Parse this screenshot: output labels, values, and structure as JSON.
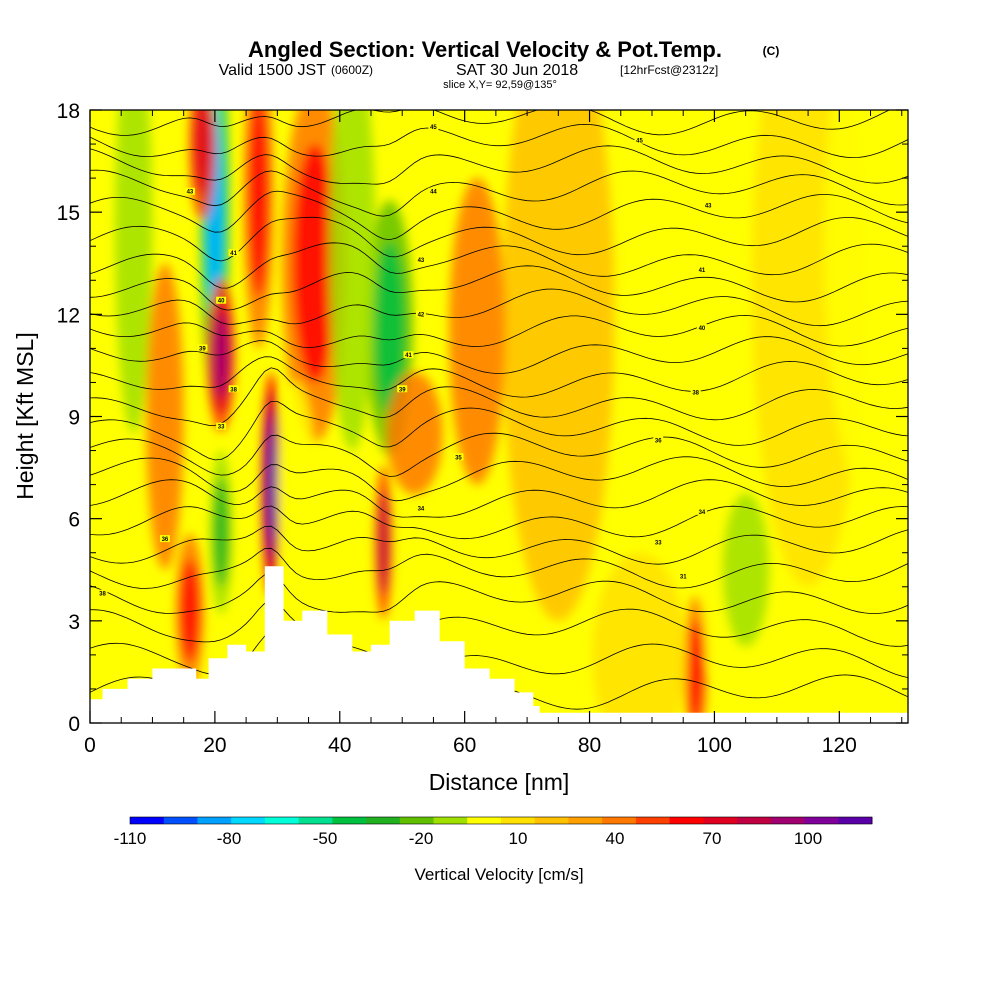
{
  "header": {
    "title": "Angled Section: Vertical Velocity & Pot.Temp.",
    "title_suffix": "(C)",
    "valid_prefix": "Valid 1500 JST",
    "valid_zulu": "(0600Z)",
    "valid_date": "SAT 30 Jun 2018",
    "forecast": "[12hrFcst@2312z]",
    "slice": "slice X,Y= 92,59@135°"
  },
  "chart_data": {
    "type": "heatmap",
    "xlabel": "Distance [nm]",
    "ylabel": "Height [Kft MSL]",
    "xlim": [
      0,
      131
    ],
    "ylim": [
      0,
      18
    ],
    "xticks": [
      0,
      20,
      40,
      60,
      80,
      100,
      120
    ],
    "yticks": [
      0,
      3,
      6,
      9,
      12,
      15,
      18
    ],
    "colorbar": {
      "title": "Vertical Velocity [cm/s]",
      "labels": [
        "-110",
        "-80",
        "-50",
        "-20",
        "10",
        "40",
        "70",
        "100"
      ],
      "colors": [
        "#0000ff",
        "#0050ff",
        "#00a0ff",
        "#00d8ff",
        "#00ffd8",
        "#00e090",
        "#00c040",
        "#20b020",
        "#60c000",
        "#a0e000",
        "#ffff00",
        "#ffe000",
        "#ffc000",
        "#ffa000",
        "#ff7800",
        "#ff4000",
        "#ff0000",
        "#e00020",
        "#c00040",
        "#a00070",
        "#80009a",
        "#5a00a8"
      ]
    },
    "terrain_kft": [
      [
        0,
        0.7
      ],
      [
        2,
        1.0
      ],
      [
        6,
        1.3
      ],
      [
        10,
        1.6
      ],
      [
        14,
        1.6
      ],
      [
        17,
        1.3
      ],
      [
        19,
        1.9
      ],
      [
        22,
        2.3
      ],
      [
        25,
        2.1
      ],
      [
        28,
        4.6
      ],
      [
        31,
        3.0
      ],
      [
        34,
        3.3
      ],
      [
        38,
        2.6
      ],
      [
        42,
        2.1
      ],
      [
        45,
        2.3
      ],
      [
        48,
        3.0
      ],
      [
        52,
        3.3
      ],
      [
        56,
        2.4
      ],
      [
        60,
        1.6
      ],
      [
        64,
        1.3
      ],
      [
        68,
        0.9
      ],
      [
        71,
        0.5
      ],
      [
        72,
        0.3
      ],
      [
        131,
        0.3
      ]
    ],
    "vv_cells": [
      {
        "x": 20,
        "y": 15.0,
        "sx": 1.6,
        "sy": 3.8,
        "v": -95
      },
      {
        "x": 21,
        "y": 5.6,
        "sx": 1.2,
        "sy": 1.6,
        "v": -50
      },
      {
        "x": 29,
        "y": 7.0,
        "sx": 1.0,
        "sy": 2.2,
        "v": 110
      },
      {
        "x": 21,
        "y": 10.8,
        "sx": 1.5,
        "sy": 1.5,
        "v": 70
      },
      {
        "x": 18,
        "y": 17.0,
        "sx": 1.4,
        "sy": 1.5,
        "v": 50
      },
      {
        "x": 27,
        "y": 15.5,
        "sx": 1.6,
        "sy": 3.0,
        "v": 45
      },
      {
        "x": 36,
        "y": 13.5,
        "sx": 3.5,
        "sy": 3.5,
        "v": 40
      },
      {
        "x": 16,
        "y": 3.3,
        "sx": 1.5,
        "sy": 1.5,
        "v": 45
      },
      {
        "x": 48,
        "y": 11.6,
        "sx": 2.5,
        "sy": 2.5,
        "v": -60
      },
      {
        "x": 42,
        "y": 14.0,
        "sx": 2.5,
        "sy": 4.0,
        "v": -25
      },
      {
        "x": 47,
        "y": 5.3,
        "sx": 0.9,
        "sy": 1.5,
        "v": 60
      },
      {
        "x": 7,
        "y": 14.5,
        "sx": 2.0,
        "sy": 4.0,
        "v": -25
      },
      {
        "x": 52,
        "y": 8.5,
        "sx": 3.0,
        "sy": 1.2,
        "v": 25
      },
      {
        "x": 100,
        "y": 6.0,
        "sx": 2.0,
        "sy": 3.0,
        "v": -20
      },
      {
        "x": 105,
        "y": 4.5,
        "sx": 2.5,
        "sy": 1.5,
        "v": -25
      },
      {
        "x": 115,
        "y": 13.0,
        "sx": 6.0,
        "sy": 6.0,
        "v": -10
      },
      {
        "x": 125,
        "y": 14.0,
        "sx": 5.0,
        "sy": 5.0,
        "v": -12
      },
      {
        "x": 97,
        "y": 1.5,
        "sx": 1.2,
        "sy": 1.5,
        "v": 45
      },
      {
        "x": 88,
        "y": 2.0,
        "sx": 5.0,
        "sy": 2.0,
        "v": -10
      },
      {
        "x": 75,
        "y": 12.0,
        "sx": 6.0,
        "sy": 6.0,
        "v": 8
      },
      {
        "x": 62,
        "y": 11.5,
        "sx": 3.0,
        "sy": 3.0,
        "v": 20
      },
      {
        "x": 33,
        "y": 7.0,
        "sx": 2.0,
        "sy": 2.0,
        "v": -20
      },
      {
        "x": 12,
        "y": 9.0,
        "sx": 2.0,
        "sy": 3.0,
        "v": 20
      }
    ],
    "theta_levels": [
      {
        "k": 38,
        "z": 0.9
      },
      {
        "k": 37,
        "z": 1.8
      },
      {
        "k": 36,
        "z": 2.8
      },
      {
        "k": 35,
        "z": 3.7
      },
      {
        "k": 34,
        "z": 4.5
      },
      {
        "k": 33,
        "z": 5.2
      },
      {
        "k": 32,
        "z": 5.9
      },
      {
        "k": 31,
        "z": 6.6
      },
      {
        "k": 30,
        "z": 7.3
      },
      {
        "k": 29,
        "z": 8.0
      },
      {
        "k": 28,
        "z": 8.7
      },
      {
        "k": 27,
        "z": 9.4
      },
      {
        "k": 26,
        "z": 10.1
      },
      {
        "k": 25,
        "z": 10.8
      },
      {
        "k": 24,
        "z": 11.5
      },
      {
        "k": 23,
        "z": 12.2
      },
      {
        "k": 22,
        "z": 12.9
      },
      {
        "k": 21,
        "z": 13.6
      },
      {
        "k": 20,
        "z": 14.3
      },
      {
        "k": 19,
        "z": 15.0
      },
      {
        "k": 18,
        "z": 15.7
      },
      {
        "k": 17,
        "z": 16.4
      },
      {
        "k": 16,
        "z": 17.1
      },
      {
        "k": 15,
        "z": 17.8
      }
    ],
    "contour_labels": [
      {
        "x": 2,
        "z": 3.8,
        "text": "38"
      },
      {
        "x": 12,
        "z": 5.4,
        "text": "36"
      },
      {
        "x": 21,
        "z": 8.7,
        "text": "33"
      },
      {
        "x": 23,
        "z": 9.8,
        "text": "38"
      },
      {
        "x": 18,
        "z": 11.0,
        "text": "39"
      },
      {
        "x": 21,
        "z": 12.4,
        "text": "40"
      },
      {
        "x": 23,
        "z": 13.8,
        "text": "41"
      },
      {
        "x": 16,
        "z": 15.6,
        "text": "43"
      },
      {
        "x": 55,
        "z": 17.5,
        "text": "45"
      },
      {
        "x": 55,
        "z": 15.6,
        "text": "44"
      },
      {
        "x": 53,
        "z": 13.6,
        "text": "43"
      },
      {
        "x": 53,
        "z": 12.0,
        "text": "42"
      },
      {
        "x": 51,
        "z": 10.8,
        "text": "41"
      },
      {
        "x": 50,
        "z": 9.8,
        "text": "39"
      },
      {
        "x": 59,
        "z": 7.8,
        "text": "35"
      },
      {
        "x": 53,
        "z": 6.3,
        "text": "34"
      },
      {
        "x": 88,
        "z": 17.1,
        "text": "45"
      },
      {
        "x": 99,
        "z": 15.2,
        "text": "43"
      },
      {
        "x": 98,
        "z": 13.3,
        "text": "41"
      },
      {
        "x": 98,
        "z": 11.6,
        "text": "40"
      },
      {
        "x": 97,
        "z": 9.7,
        "text": "38"
      },
      {
        "x": 91,
        "z": 8.3,
        "text": "36"
      },
      {
        "x": 98,
        "z": 6.2,
        "text": "34"
      },
      {
        "x": 91,
        "z": 5.3,
        "text": "33"
      },
      {
        "x": 95,
        "z": 4.3,
        "text": "31"
      }
    ]
  }
}
